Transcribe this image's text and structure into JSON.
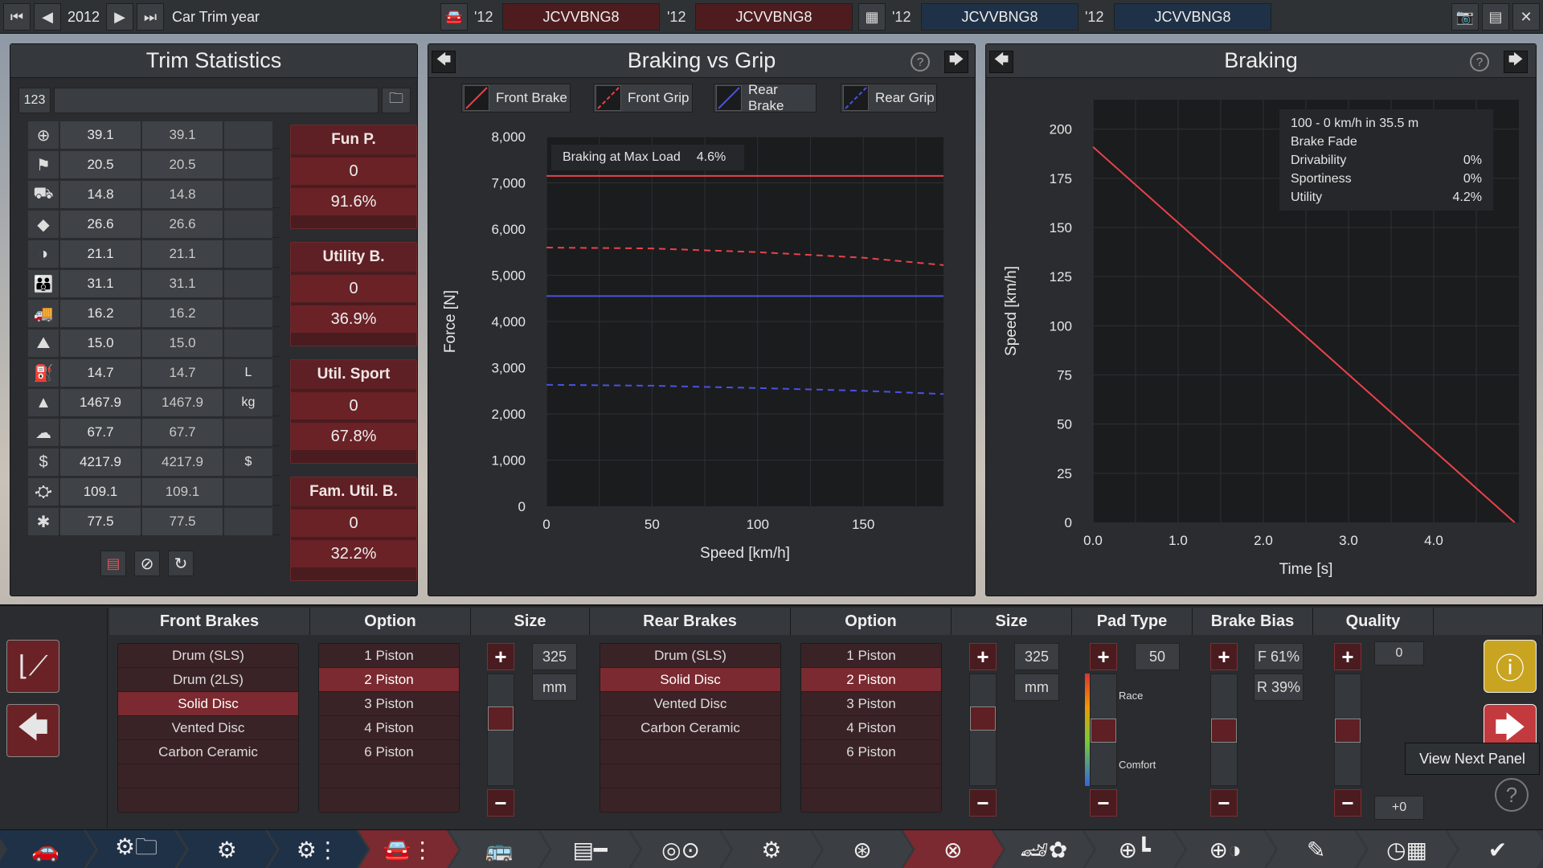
{
  "topbar": {
    "year": "2012",
    "title": "Car Trim year",
    "year_short": "'12",
    "vins": [
      {
        "year": "'12",
        "code": "JCVVBNG8"
      },
      {
        "year": "'12",
        "code": "JCVVBNG8"
      },
      {
        "year": "'12",
        "code": "JCVVBNG8"
      },
      {
        "year": "'12",
        "code": "JCVVBNG8"
      }
    ]
  },
  "trim_stats": {
    "title": "Trim Statistics",
    "counter": "123",
    "rows": [
      {
        "icon": "steering-wheel-icon",
        "a": "39.1",
        "b": "39.1",
        "unit": ""
      },
      {
        "icon": "checkered-flag-icon",
        "a": "20.5",
        "b": "20.5",
        "unit": ""
      },
      {
        "icon": "car-seat-icon",
        "a": "14.8",
        "b": "14.8",
        "unit": ""
      },
      {
        "icon": "diamond-icon",
        "a": "26.6",
        "b": "26.6",
        "unit": ""
      },
      {
        "icon": "safety-icon",
        "a": "21.1",
        "b": "21.1",
        "unit": ""
      },
      {
        "icon": "family-icon",
        "a": "31.1",
        "b": "31.1",
        "unit": ""
      },
      {
        "icon": "utility-truck-icon",
        "a": "16.2",
        "b": "16.2",
        "unit": ""
      },
      {
        "icon": "offroad-icon",
        "a": "15.0",
        "b": "15.0",
        "unit": ""
      },
      {
        "icon": "fuel-icon",
        "a": "14.7",
        "b": "14.7",
        "unit": "L"
      },
      {
        "icon": "weight-icon",
        "a": "1467.9",
        "b": "1467.9",
        "unit": "kg"
      },
      {
        "icon": "cargo-icon",
        "a": "67.7",
        "b": "67.7",
        "unit": ""
      },
      {
        "icon": "cost-icon",
        "a": "4217.9",
        "b": "4217.9",
        "unit": "$"
      },
      {
        "icon": "service-icon",
        "a": "109.1",
        "b": "109.1",
        "unit": ""
      },
      {
        "icon": "wrench-icon",
        "a": "77.5",
        "b": "77.5",
        "unit": ""
      }
    ],
    "scores": [
      {
        "title": "Fun P.",
        "value": "0",
        "percent": "91.6%"
      },
      {
        "title": "Utility B.",
        "value": "0",
        "percent": "36.9%"
      },
      {
        "title": "Util. Sport",
        "value": "0",
        "percent": "67.8%"
      },
      {
        "title": "Fam. Util. B.",
        "value": "0",
        "percent": "32.2%"
      }
    ]
  },
  "braking_vs_grip": {
    "title": "Braking vs Grip",
    "legend": [
      "Front Brake",
      "Front Grip",
      "Rear Brake",
      "Rear Grip"
    ],
    "annotation_label": "Braking at Max Load",
    "annotation_value": "4.6%",
    "colors": {
      "front": "#e8424a",
      "rear": "#4a52e0"
    }
  },
  "braking": {
    "title": "Braking",
    "info": {
      "headline": "100 - 0 km/h in 35.5 m",
      "subtitle": "Brake Fade",
      "rows": [
        {
          "label": "Drivability",
          "value": "0%"
        },
        {
          "label": "Sportiness",
          "value": "0%"
        },
        {
          "label": "Utility",
          "value": "4.2%"
        }
      ]
    }
  },
  "chart_data": [
    {
      "type": "line",
      "title": "Braking vs Grip",
      "xlabel": "Speed [km/h]",
      "ylabel": "Force [N]",
      "xlim": [
        0,
        188
      ],
      "ylim": [
        0,
        8000
      ],
      "xticks": [
        "0",
        "50",
        "100",
        "150"
      ],
      "yticks": [
        "0",
        "1,000",
        "2,000",
        "3,000",
        "4,000",
        "5,000",
        "6,000",
        "7,000",
        "8,000"
      ],
      "series": [
        {
          "name": "Front Brake",
          "x": [
            0,
            188
          ],
          "values": [
            7150,
            7150
          ]
        },
        {
          "name": "Front Grip",
          "x": [
            0,
            50,
            100,
            150,
            188
          ],
          "values": [
            5600,
            5580,
            5500,
            5380,
            5220
          ]
        },
        {
          "name": "Rear Brake",
          "x": [
            0,
            188
          ],
          "values": [
            4550,
            4550
          ]
        },
        {
          "name": "Rear Grip",
          "x": [
            0,
            50,
            100,
            150,
            188
          ],
          "values": [
            2630,
            2610,
            2560,
            2500,
            2430
          ]
        }
      ]
    },
    {
      "type": "line",
      "title": "Braking",
      "xlabel": "Time [s]",
      "ylabel": "Speed [km/h]",
      "xlim": [
        0,
        5
      ],
      "ylim": [
        0,
        215
      ],
      "xticks": [
        "0.0",
        "1.0",
        "2.0",
        "3.0",
        "4.0"
      ],
      "yticks": [
        "0",
        "25",
        "50",
        "75",
        "100",
        "125",
        "150",
        "175",
        "200"
      ],
      "series": [
        {
          "name": "",
          "x": [
            0,
            4.95
          ],
          "values": [
            191,
            0
          ]
        }
      ]
    }
  ],
  "bottom": {
    "headers": {
      "front_brakes": "Front Brakes",
      "option_front": "Option",
      "size_front": "Size",
      "rear_brakes": "Rear Brakes",
      "option_rear": "Option",
      "size_rear": "Size",
      "pad_type": "Pad Type",
      "brake_bias": "Brake Bias",
      "quality": "Quality"
    },
    "front_brakes": [
      "Drum (SLS)",
      "Drum (2LS)",
      "Solid Disc",
      "Vented Disc",
      "Carbon Ceramic"
    ],
    "front_selected": 2,
    "front_options": [
      "1 Piston",
      "2 Piston",
      "3 Piston",
      "4 Piston",
      "6 Piston"
    ],
    "front_option_selected": 1,
    "front_size": "325",
    "front_size_unit": "mm",
    "rear_brakes": [
      "Drum (SLS)",
      "Solid Disc",
      "Vented Disc",
      "Carbon Ceramic"
    ],
    "rear_selected": 1,
    "rear_options": [
      "1 Piston",
      "2 Piston",
      "3 Piston",
      "4 Piston",
      "6 Piston"
    ],
    "rear_option_selected": 1,
    "rear_size": "325",
    "rear_size_unit": "mm",
    "pad_value": "50",
    "pad_race": "Race",
    "pad_comfort": "Comfort",
    "bias_front": "F 61%",
    "bias_rear": "R 39%",
    "quality_value": "0",
    "quality_delta": "+0",
    "tooltip": "View Next Panel"
  },
  "nav": [
    "car-body-icon",
    "engine-family-icon",
    "engine-icon",
    "engine-tune-icon",
    "chassis-icon",
    "bodywork-icon",
    "drivetrain-icon",
    "suspension-icon",
    "tyres-icon",
    "wheels-icon",
    "brakes-icon",
    "aero-icon",
    "interior-icon",
    "safety-icon",
    "fuel-system-icon",
    "testing-icon",
    "finish-icon"
  ]
}
